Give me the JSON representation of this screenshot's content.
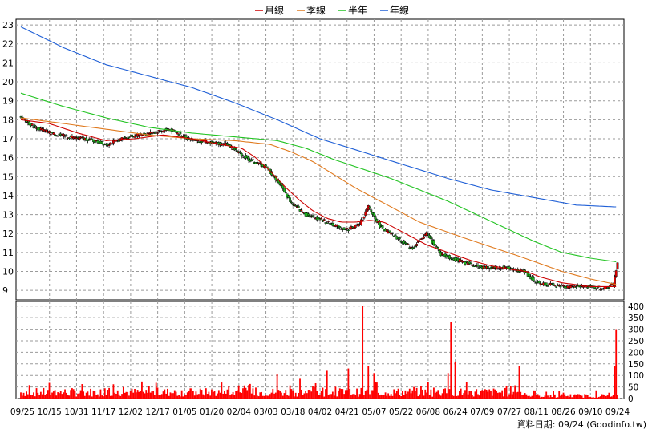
{
  "chart_data": {
    "type": "candlestick",
    "legend": {
      "placement": "top-center",
      "entries": [
        {
          "name": "月線",
          "color": "#cc0000"
        },
        {
          "name": "季線",
          "color": "#e07a1f"
        },
        {
          "name": "半年",
          "color": "#22c322"
        },
        {
          "name": "年線",
          "color": "#1f5fd6"
        }
      ]
    },
    "x_ticks": [
      "09/25",
      "10/15",
      "10/31",
      "11/17",
      "12/02",
      "12/17",
      "01/05",
      "01/20",
      "02/04",
      "03/03",
      "03/18",
      "04/02",
      "04/21",
      "05/07",
      "05/22",
      "06/08",
      "06/24",
      "07/09",
      "07/27",
      "08/11",
      "08/26",
      "09/10",
      "09/24"
    ],
    "price_axis": {
      "ticks": [
        9,
        10,
        11,
        12,
        13,
        14,
        15,
        16,
        17,
        18,
        19,
        20,
        21,
        22,
        23
      ],
      "ylim": [
        8.5,
        23.3
      ],
      "grid": true
    },
    "volume_axis": {
      "ticks": [
        0,
        50,
        100,
        150,
        200,
        250,
        300,
        350,
        400
      ],
      "ylim": [
        0,
        420
      ],
      "grid": true
    },
    "price_anchors": [
      [
        0,
        18.1
      ],
      [
        10,
        17.6
      ],
      [
        25,
        17.2
      ],
      [
        45,
        17.0
      ],
      [
        60,
        16.7
      ],
      [
        75,
        17.1
      ],
      [
        90,
        17.3
      ],
      [
        104,
        17.5
      ],
      [
        118,
        17.0
      ],
      [
        133,
        16.8
      ],
      [
        145,
        16.7
      ],
      [
        160,
        15.9
      ],
      [
        172,
        15.5
      ],
      [
        182,
        14.6
      ],
      [
        190,
        13.6
      ],
      [
        200,
        13.0
      ],
      [
        212,
        12.7
      ],
      [
        228,
        12.2
      ],
      [
        238,
        12.5
      ],
      [
        244,
        13.4
      ],
      [
        252,
        12.4
      ],
      [
        265,
        11.7
      ],
      [
        275,
        11.2
      ],
      [
        285,
        12.0
      ],
      [
        295,
        10.9
      ],
      [
        310,
        10.5
      ],
      [
        325,
        10.2
      ],
      [
        340,
        10.2
      ],
      [
        353,
        10.0
      ],
      [
        362,
        9.4
      ],
      [
        380,
        9.2
      ],
      [
        400,
        9.2
      ],
      [
        410,
        9.1
      ],
      [
        416,
        9.3
      ],
      [
        419,
        10.5
      ]
    ],
    "ma_month": [
      [
        0,
        18.0
      ],
      [
        20,
        17.8
      ],
      [
        40,
        17.3
      ],
      [
        60,
        16.9
      ],
      [
        80,
        17.0
      ],
      [
        100,
        17.2
      ],
      [
        120,
        17.0
      ],
      [
        140,
        16.7
      ],
      [
        155,
        16.5
      ],
      [
        165,
        16.0
      ],
      [
        175,
        15.3
      ],
      [
        185,
        14.5
      ],
      [
        195,
        13.8
      ],
      [
        205,
        13.2
      ],
      [
        215,
        12.8
      ],
      [
        225,
        12.6
      ],
      [
        235,
        12.6
      ],
      [
        245,
        12.7
      ],
      [
        255,
        12.6
      ],
      [
        265,
        12.2
      ],
      [
        275,
        11.8
      ],
      [
        285,
        11.4
      ],
      [
        300,
        11.0
      ],
      [
        315,
        10.6
      ],
      [
        330,
        10.3
      ],
      [
        345,
        10.1
      ],
      [
        355,
        10.0
      ],
      [
        365,
        9.7
      ],
      [
        380,
        9.4
      ],
      [
        400,
        9.2
      ],
      [
        419,
        9.2
      ]
    ],
    "ma_quarter": [
      [
        0,
        18.1
      ],
      [
        30,
        17.8
      ],
      [
        60,
        17.5
      ],
      [
        90,
        17.2
      ],
      [
        120,
        17.0
      ],
      [
        150,
        16.9
      ],
      [
        175,
        16.7
      ],
      [
        190,
        16.3
      ],
      [
        205,
        15.8
      ],
      [
        220,
        15.1
      ],
      [
        235,
        14.4
      ],
      [
        250,
        13.8
      ],
      [
        265,
        13.2
      ],
      [
        280,
        12.6
      ],
      [
        295,
        12.2
      ],
      [
        310,
        11.8
      ],
      [
        330,
        11.3
      ],
      [
        350,
        10.8
      ],
      [
        365,
        10.4
      ],
      [
        380,
        10.0
      ],
      [
        400,
        9.6
      ],
      [
        419,
        9.3
      ]
    ],
    "ma_half": [
      [
        0,
        19.4
      ],
      [
        30,
        18.7
      ],
      [
        60,
        18.1
      ],
      [
        90,
        17.6
      ],
      [
        120,
        17.3
      ],
      [
        150,
        17.1
      ],
      [
        180,
        16.9
      ],
      [
        200,
        16.5
      ],
      [
        220,
        15.9
      ],
      [
        240,
        15.4
      ],
      [
        260,
        14.9
      ],
      [
        280,
        14.3
      ],
      [
        300,
        13.7
      ],
      [
        320,
        13.0
      ],
      [
        340,
        12.3
      ],
      [
        360,
        11.6
      ],
      [
        380,
        11.0
      ],
      [
        400,
        10.7
      ],
      [
        419,
        10.5
      ]
    ],
    "ma_year": [
      [
        0,
        22.9
      ],
      [
        30,
        21.8
      ],
      [
        60,
        20.9
      ],
      [
        90,
        20.3
      ],
      [
        120,
        19.7
      ],
      [
        150,
        18.9
      ],
      [
        180,
        18.0
      ],
      [
        210,
        17.0
      ],
      [
        240,
        16.3
      ],
      [
        270,
        15.6
      ],
      [
        300,
        14.9
      ],
      [
        330,
        14.3
      ],
      [
        360,
        13.9
      ],
      [
        390,
        13.5
      ],
      [
        419,
        13.4
      ]
    ],
    "volume_spikes": [
      [
        240,
        400
      ],
      [
        244,
        140
      ],
      [
        248,
        110
      ],
      [
        300,
        110
      ],
      [
        302,
        330
      ],
      [
        305,
        160
      ],
      [
        350,
        140
      ],
      [
        418,
        300
      ],
      [
        417,
        140
      ],
      [
        230,
        130
      ],
      [
        215,
        120
      ],
      [
        180,
        105
      ]
    ],
    "footer_text": "資料日期: 09/24  (Goodinfo.tw)"
  }
}
